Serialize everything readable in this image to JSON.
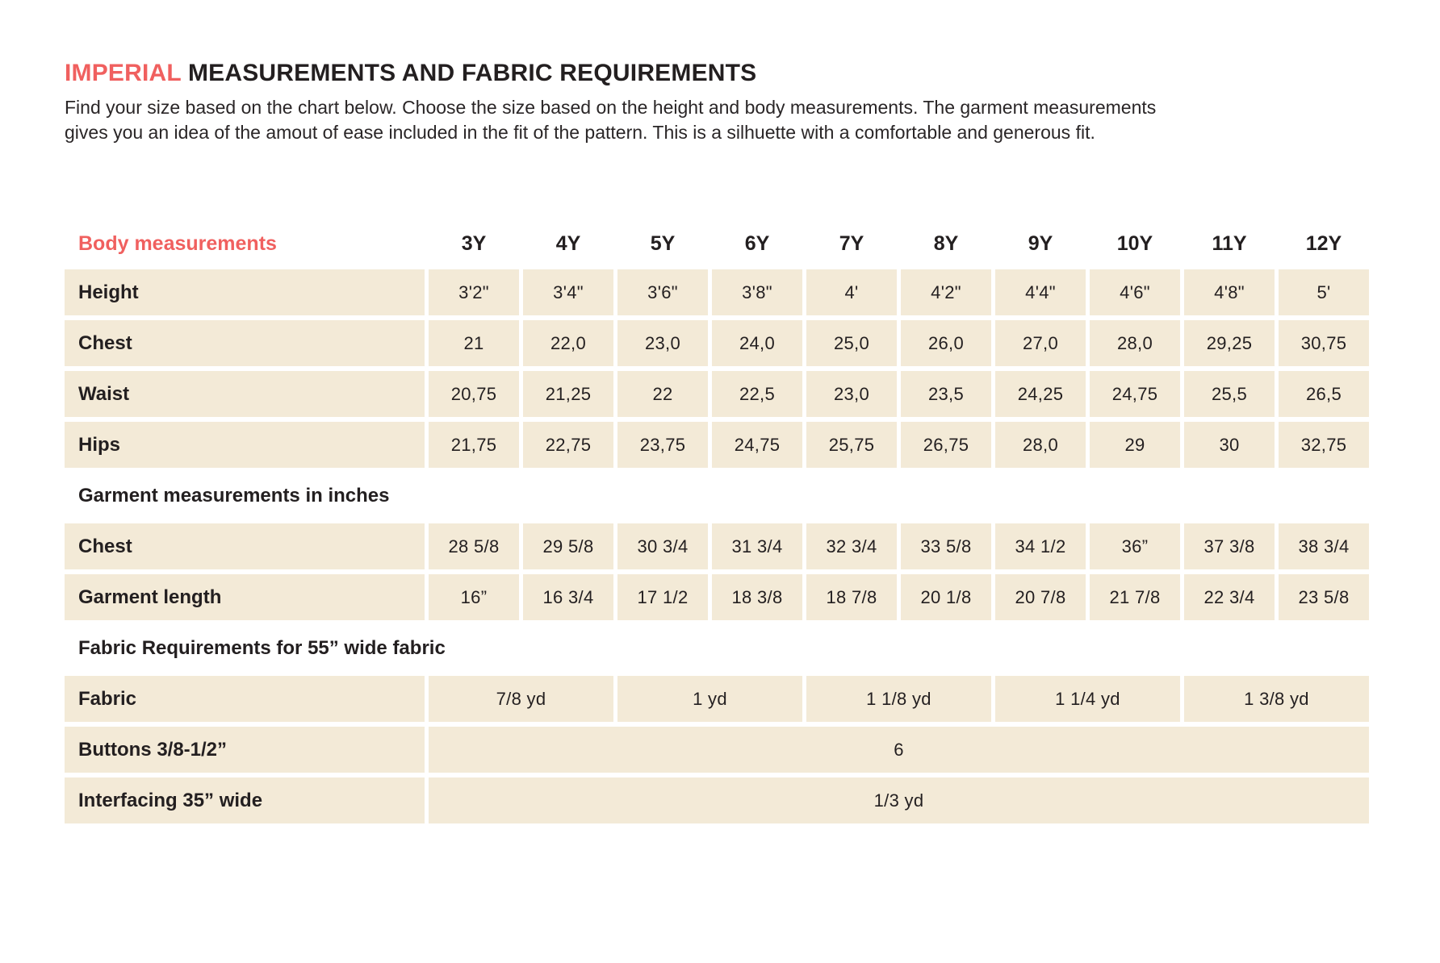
{
  "title": {
    "highlight": "IMPERIAL",
    "rest": " MEASUREMENTS AND FABRIC REQUIREMENTS"
  },
  "intro": [
    "Find your size based on the chart below. Choose the size based on the height and body measurements. The garment measurements",
    "gives you an idea of the amout of ease included in the fit of the pattern. This is a silhuette with a comfortable and generous fit."
  ],
  "colors": {
    "accent": "#F0605F",
    "cell_background": "#F3EAD7",
    "text": "#231F20"
  },
  "table": {
    "header_label": "Body measurements",
    "sizes": [
      "3Y",
      "4Y",
      "5Y",
      "6Y",
      "7Y",
      "8Y",
      "9Y",
      "10Y",
      "11Y",
      "12Y"
    ],
    "body_rows": [
      {
        "label": "Height",
        "values": [
          "3'2\"",
          "3'4\"",
          "3'6\"",
          "3'8\"",
          "4'",
          "4'2\"",
          "4'4\"",
          "4'6\"",
          "4'8\"",
          "5'"
        ]
      },
      {
        "label": "Chest",
        "values": [
          "21",
          "22,0",
          "23,0",
          "24,0",
          "25,0",
          "26,0",
          "27,0",
          "28,0",
          "29,25",
          "30,75"
        ]
      },
      {
        "label": "Waist",
        "values": [
          "20,75",
          "21,25",
          "22",
          "22,5",
          "23,0",
          "23,5",
          "24,25",
          "24,75",
          "25,5",
          "26,5"
        ]
      },
      {
        "label": "Hips",
        "values": [
          "21,75",
          "22,75",
          "23,75",
          "24,75",
          "25,75",
          "26,75",
          "28,0",
          "29",
          "30",
          "32,75"
        ]
      }
    ],
    "garment_section_label": "Garment measurements in inches",
    "garment_rows": [
      {
        "label": "Chest",
        "values": [
          "28 5/8",
          "29 5/8",
          "30 3/4",
          "31 3/4",
          "32 3/4",
          "33 5/8",
          "34 1/2",
          "36”",
          "37 3/8",
          "38 3/4"
        ]
      },
      {
        "label": "Garment length",
        "values": [
          "16”",
          "16 3/4",
          "17 1/2",
          "18 3/8",
          "18 7/8",
          "20 1/8",
          "20 7/8",
          "21 7/8",
          "22 3/4",
          "23 5/8"
        ]
      }
    ],
    "fabric_section_label": "Fabric Requirements for  55” wide fabric",
    "fabric_row": {
      "label": "Fabric",
      "columns_spanned": 2,
      "values": [
        "7/8 yd",
        "1 yd",
        "1 1/8 yd",
        "1 1/4 yd",
        "1 3/8 yd"
      ]
    },
    "full_rows": [
      {
        "label": "Buttons 3/8-1/2”",
        "value": "6"
      },
      {
        "label": "Interfacing  35” wide",
        "value": "1/3 yd"
      }
    ]
  }
}
